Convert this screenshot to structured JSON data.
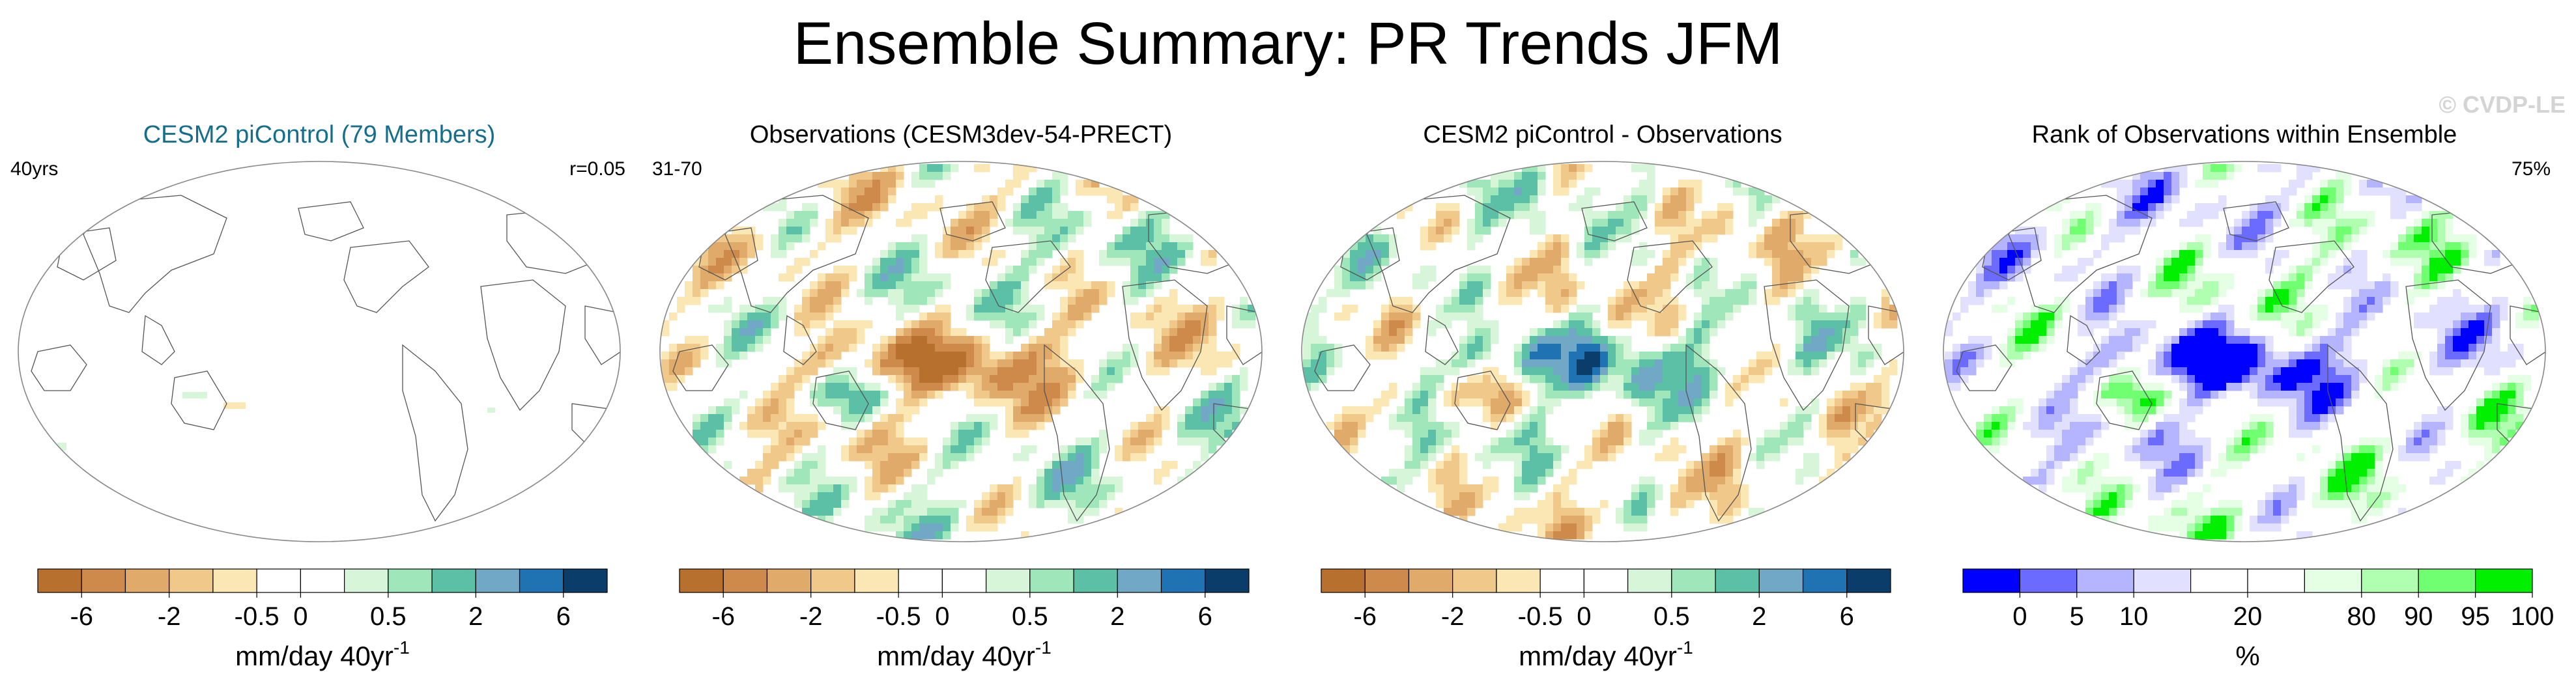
{
  "figure": {
    "title": "Ensemble Summary: PR Trends JFM",
    "watermark": "© CVDP-LE"
  },
  "panels": [
    {
      "title": "CESM2 piControl (79 Members)",
      "title_color": "#156f8c",
      "left_label": "40yrs",
      "right_label": "r=0.05",
      "field": "mean"
    },
    {
      "title": "Observations (CESM3dev-54-PRECT)",
      "title_color": "#000000",
      "left_label": "31-70",
      "right_label": "",
      "field": "obs"
    },
    {
      "title": "CESM2 piControl - Observations",
      "title_color": "#000000",
      "left_label": "",
      "right_label": "",
      "field": "diff"
    },
    {
      "title": "Rank of Observations within Ensemble",
      "title_color": "#000000",
      "left_label": "",
      "right_label": "75%",
      "field": "rank"
    }
  ],
  "chart_data": [
    {
      "type": "heatmap",
      "title": "CESM2 piControl (79 Members)",
      "projection": "Robinson, Pacific-centered",
      "units": "mm/day 40yr^-1",
      "colorbar": {
        "tick_labels": [
          "-6",
          "-2",
          "-0.5",
          "0",
          "0.5",
          "2",
          "6"
        ],
        "colors": [
          "#b8702e",
          "#cd8a4a",
          "#dfaa6a",
          "#f0c98a",
          "#fae7b3",
          "#ffffff",
          "#ffffff",
          "#d7f5d8",
          "#9fe6bb",
          "#5cc0a6",
          "#71a8c6",
          "#1f73b3",
          "#0b3d6b"
        ],
        "label": "mm/day 40yr",
        "label_sup": "-1"
      },
      "note": "Nearly all values within ±0.5 (white); small weak anomalies in tropical west Pacific."
    },
    {
      "type": "heatmap",
      "title": "Observations (CESM3dev-54-PRECT)",
      "units": "mm/day 40yr^-1",
      "colorbar": {
        "tick_labels": [
          "-6",
          "-2",
          "-0.5",
          "0",
          "0.5",
          "2",
          "6"
        ],
        "colors": [
          "#b8702e",
          "#cd8a4a",
          "#dfaa6a",
          "#f0c98a",
          "#fae7b3",
          "#ffffff",
          "#ffffff",
          "#d7f5d8",
          "#9fe6bb",
          "#5cc0a6",
          "#71a8c6",
          "#1f73b3",
          "#0b3d6b"
        ],
        "label": "mm/day 40yr",
        "label_sup": "-1"
      },
      "note": "Drying (browns) along equatorial central Pacific; wetting (greens/teal) in west Pacific warm pool, Maritime Continent and SPCZ."
    },
    {
      "type": "heatmap",
      "title": "CESM2 piControl - Observations",
      "units": "mm/day 40yr^-1",
      "colorbar": {
        "tick_labels": [
          "-6",
          "-2",
          "-0.5",
          "0",
          "0.5",
          "2",
          "6"
        ],
        "colors": [
          "#b8702e",
          "#cd8a4a",
          "#dfaa6a",
          "#f0c98a",
          "#fae7b3",
          "#ffffff",
          "#ffffff",
          "#d7f5d8",
          "#9fe6bb",
          "#5cc0a6",
          "#71a8c6",
          "#1f73b3",
          "#0b3d6b"
        ],
        "label": "mm/day 40yr",
        "label_sup": "-1"
      },
      "note": "Approximately the negative of the observed trends."
    },
    {
      "type": "heatmap",
      "title": "Rank of Observations within Ensemble",
      "units": "%",
      "colorbar": {
        "tick_labels": [
          "0",
          "5",
          "10",
          "20",
          "80",
          "90",
          "95",
          "100"
        ],
        "colors": [
          "#0000ff",
          "#6b6bff",
          "#b4b4ff",
          "#e1e1ff",
          "#ffffff",
          "#ffffff",
          "#e4ffe4",
          "#b0ffb0",
          "#70ff70",
          "#00f000"
        ],
        "label": "%",
        "label_sup": ""
      },
      "note": "Blue where observations rank low (central Pacific), green where high (west Pacific, Maritime Continent)."
    }
  ]
}
